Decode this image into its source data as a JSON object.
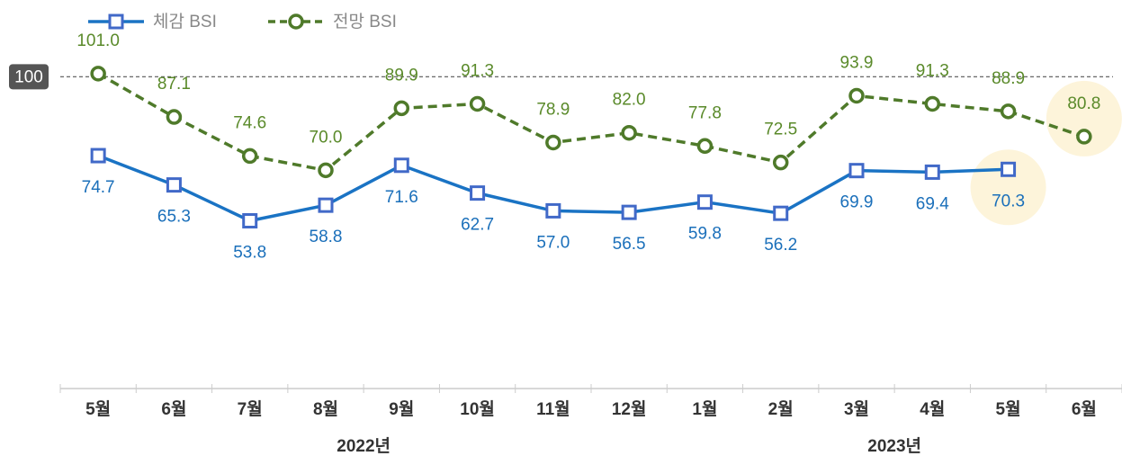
{
  "chart_data": {
    "type": "line",
    "categories": [
      "5월",
      "6월",
      "7월",
      "8월",
      "9월",
      "10월",
      "11월",
      "12월",
      "1월",
      "2월",
      "3월",
      "4월",
      "5월",
      "6월"
    ],
    "groups": [
      {
        "label": "2022년",
        "count": 8
      },
      {
        "label": "2023년",
        "count": 6
      }
    ],
    "series": [
      {
        "name": "체감 BSI",
        "color": "#1a73c4",
        "marker": "square",
        "dashed": false,
        "values": [
          74.7,
          65.3,
          53.8,
          58.8,
          71.6,
          62.7,
          57.0,
          56.5,
          59.8,
          56.2,
          69.9,
          69.4,
          70.3,
          null
        ],
        "value_labels": [
          "74.7",
          "65.3",
          "53.8",
          "58.8",
          "71.6",
          "62.7",
          "57.0",
          "56.5",
          "59.8",
          "56.2",
          "69.9",
          "69.4",
          "70.3",
          null
        ]
      },
      {
        "name": "전망 BSI",
        "color": "#4f7a2a",
        "marker": "circle",
        "dashed": true,
        "values": [
          101.0,
          87.1,
          74.6,
          70.0,
          89.9,
          91.3,
          78.9,
          82.0,
          77.8,
          72.5,
          93.9,
          91.3,
          88.9,
          80.8
        ],
        "value_labels": [
          "101.0",
          "87.1",
          "74.6",
          "70.0",
          "89.9",
          "91.3",
          "78.9",
          "82.0",
          "77.8",
          "72.5",
          "93.9",
          "91.3",
          "88.9",
          "80.8"
        ]
      }
    ],
    "reference_line": 100,
    "ylim": [
      0,
      120
    ]
  }
}
